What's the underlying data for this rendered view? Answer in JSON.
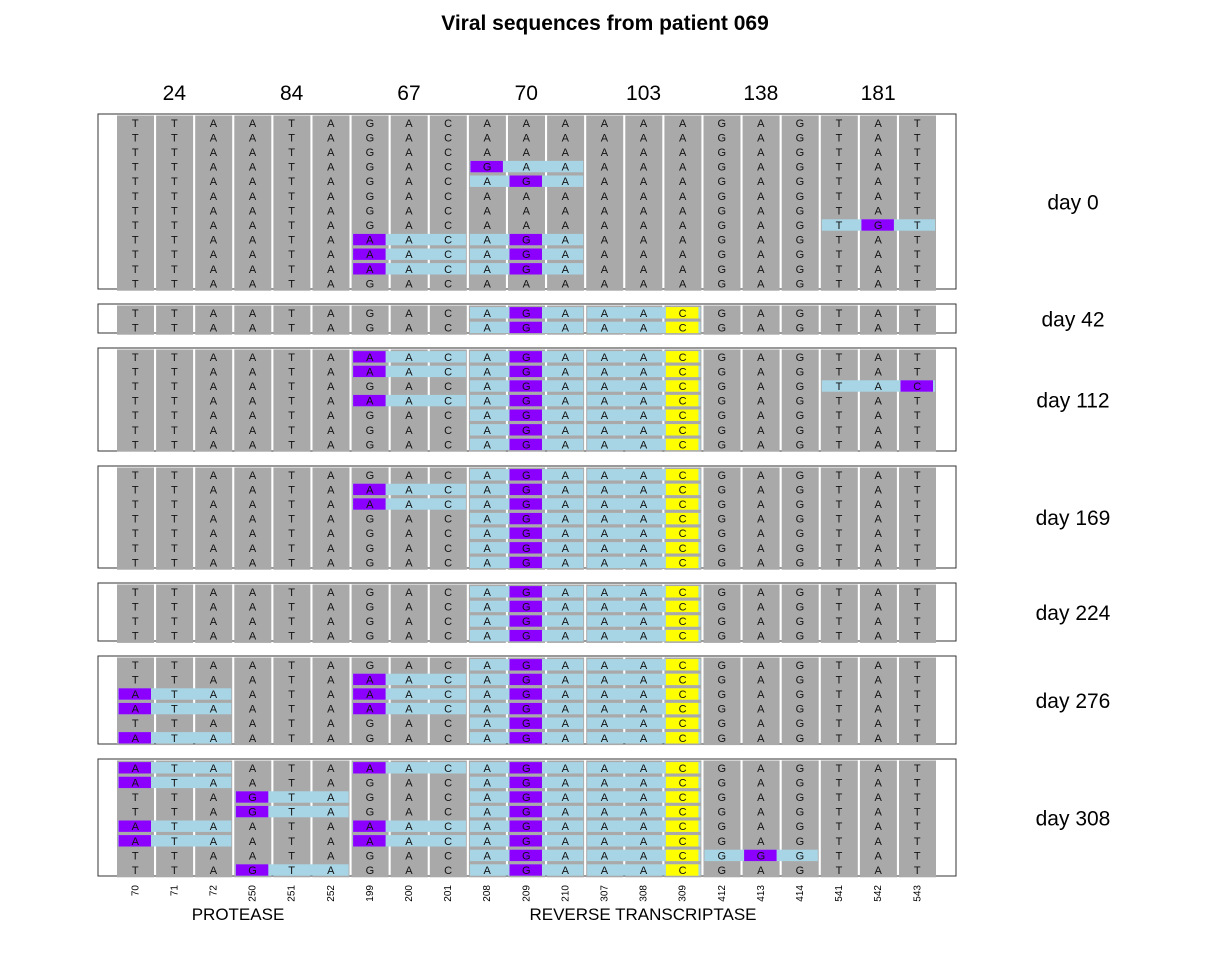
{
  "chart_data": {
    "type": "table",
    "title": "Viral sequences from patient 069",
    "codons": [
      "24",
      "84",
      "67",
      "70",
      "103",
      "138",
      "181"
    ],
    "positions": [
      "70",
      "71",
      "72",
      "250",
      "251",
      "252",
      "199",
      "200",
      "201",
      "208",
      "209",
      "210",
      "307",
      "308",
      "309",
      "412",
      "413",
      "414",
      "541",
      "542",
      "543"
    ],
    "genes": [
      "PROTEASE",
      "REVERSE TRANSCRIPTASE"
    ],
    "wildtype": "TTAATAGACAAAAAAGAGTAT",
    "colors": {
      "background": "#a9a9a9",
      "codon_changed": "#a8d5e5",
      "nonsynonymous": "#8b00ff",
      "synonymous": "#ffff00",
      "frame": "#333333"
    },
    "samples": [
      {
        "day": "day 0",
        "sequences": [
          "TTAATAGACAAAAAAGAGTAT",
          "TTAATAGACAAAAAAGAGTAT",
          "TTAATAGACAAAAAAGAGTAT",
          "TTAATAGACGAAAAAGAGTAT",
          "TTAATAGACAGAAAAGAGTAT",
          "TTAATAGACAAAAAAGAGTAT",
          "TTAATAGACAAAAAAGAGTAT",
          "TTAATAGACAAAAAAGAGTGT",
          "TTAATAAACAGAAAAGAGTAT",
          "TTAATAAACAGAAAAGAGTAT",
          "TTAATAAACAGAAAAGAGTAT",
          "TTAATAGACAAAAAAGAGTAT"
        ]
      },
      {
        "day": "day 42",
        "sequences": [
          "TTAATAGACAGAAACGAGTAT",
          "TTAATAGACAGAAACGAGTAT"
        ]
      },
      {
        "day": "day 112",
        "sequences": [
          "TTAATAAACAGAAACGAGTAT",
          "TTAATAAACAGAAACGAGTAT",
          "TTAATAGACAGAAACGAGTAC",
          "TTAATAAACAGAAACGAGTAT",
          "TTAATAGACAGAAACGAGTAT",
          "TTAATAGACAGAAACGAGTAT",
          "TTAATAGACAGAAACGAGTAT"
        ]
      },
      {
        "day": "day 169",
        "sequences": [
          "TTAATAGACAGAAACGAGTAT",
          "TTAATAAACAGAAACGAGTAT",
          "TTAATAAACAGAAACGAGTAT",
          "TTAATAGACAGAAACGAGTAT",
          "TTAATAGACAGAAACGAGTAT",
          "TTAATAGACAGAAACGAGTAT",
          "TTAATAGACAGAAACGAGTAT"
        ]
      },
      {
        "day": "day 224",
        "sequences": [
          "TTAATAGACAGAAACGAGTAT",
          "TTAATAGACAGAAACGAGTAT",
          "TTAATAGACAGAAACGAGTAT",
          "TTAATAGACAGAAACGAGTAT"
        ]
      },
      {
        "day": "day 276",
        "sequences": [
          "TTAATAGACAGAAACGAGTAT",
          "TTAATAAACAGAAACGAGTAT",
          "ATAATAAACAGAAACGAGTAT",
          "ATAATAAACAGAAACGAGTAT",
          "TTAATAGACAGAAACGAGTAT",
          "ATAATAGACAGAAACGAGTAT"
        ]
      },
      {
        "day": "day 308",
        "sequences": [
          "ATAATAAACAGAAACGAGTAT",
          "ATAATAGACAGAAACGAGTAT",
          "TTAGTAGACAGAAACGAGTAT",
          "TTAGTAGACAGAAACGAGTAT",
          "ATAATAAACAGAAACGAGTAT",
          "ATAATAAACAGAAACGAGTAT",
          "TTAATAGACAGAAACGGGTAT",
          "TTAGTAGACAGAAACGAGTAT"
        ]
      }
    ]
  }
}
